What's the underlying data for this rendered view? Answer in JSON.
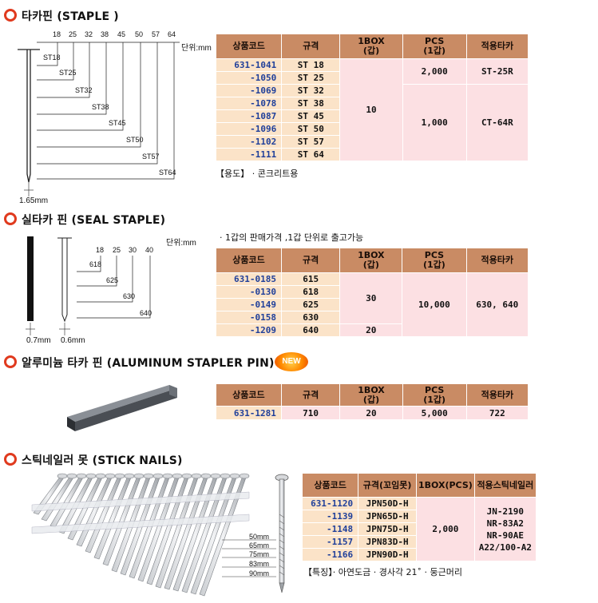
{
  "unit_label": "단위:mm",
  "staple": {
    "title": "타카핀 (STAPLE )",
    "diagram": {
      "top_ticks": [
        "18",
        "25",
        "32",
        "38",
        "45",
        "50",
        "57",
        "64"
      ],
      "lengths": [
        "ST18",
        "ST25",
        "ST32",
        "ST38",
        "ST45",
        "ST50",
        "ST57",
        "ST64"
      ],
      "thickness": "1.65mm"
    },
    "headers": [
      "상품코드",
      "규격",
      "1BOX\n(갑)",
      "PCS\n(1갑)",
      "적용타카"
    ],
    "codes": [
      "631-1041",
      "-1050",
      "-1069",
      "-1078",
      "-1087",
      "-1096",
      "-1102",
      "-1111"
    ],
    "specs": [
      "ST 18",
      "ST 25",
      "ST 32",
      "ST 38",
      "ST 45",
      "ST 50",
      "ST 57",
      "ST 64"
    ],
    "box": "10",
    "pcs_a": "2,000",
    "pcs_b": "1,000",
    "tool_a": "ST-25R",
    "tool_b": "CT-64R",
    "note": "【용도】 · 콘크리트용"
  },
  "seal": {
    "title": "실타카 핀 (SEAL STAPLE)",
    "note": "· 1갑의 판매가격 ,1갑 단위로 출고가능",
    "diagram": {
      "top_ticks": [
        "18",
        "25",
        "30",
        "40"
      ],
      "lengths": [
        "618",
        "625",
        "630",
        "640"
      ],
      "thick_a": "0.7mm",
      "thick_b": "0.6mm"
    },
    "headers": [
      "상품코드",
      "규격",
      "1BOX\n(갑)",
      "PCS\n(1갑)",
      "적용타카"
    ],
    "codes": [
      "631-0185",
      "-0130",
      "-0149",
      "-0158",
      "-1209"
    ],
    "specs": [
      "615",
      "618",
      "625",
      "630",
      "640"
    ],
    "box_a": "30",
    "box_b": "20",
    "pcs": "10,000",
    "tool": "630, 640"
  },
  "aluminum": {
    "title": "알루미늄 타카 핀 (ALUMINUM STAPLER PIN)",
    "badge": "NEW",
    "headers": [
      "상품코드",
      "규격",
      "1BOX\n(갑)",
      "PCS\n(1갑)",
      "적용타카"
    ],
    "row": [
      "631-1281",
      "710",
      "20",
      "5,000",
      "722"
    ]
  },
  "stick": {
    "title": "스틱네일러 못 (STICK NAILS)",
    "lengths": [
      "50mm",
      "65mm",
      "75mm",
      "83mm",
      "90mm"
    ],
    "headers": [
      "상품코드",
      "규격(꼬임못)",
      "1BOX(PCS)",
      "적용스틱네일러"
    ],
    "codes": [
      "631-1120",
      "-1139",
      "-1148",
      "-1157",
      "-1166"
    ],
    "specs": [
      "JPN50D-H",
      "JPN65D-H",
      "JPN75D-H",
      "JPN83D-H",
      "JPN90D-H"
    ],
    "box": "2,000",
    "tools": [
      "JN-2190",
      "NR-83A2",
      "NR-90AE",
      "A22/100-A2"
    ],
    "note": "【특징】· 아연도금   · 경사각 21˚        · 둥근머리"
  },
  "colors": {
    "accent": "#e03a1e",
    "header": "#c98b64",
    "code_bg": "#fbe3c8",
    "pink": "#fce0e3",
    "code_text": "#1f3f9a"
  }
}
